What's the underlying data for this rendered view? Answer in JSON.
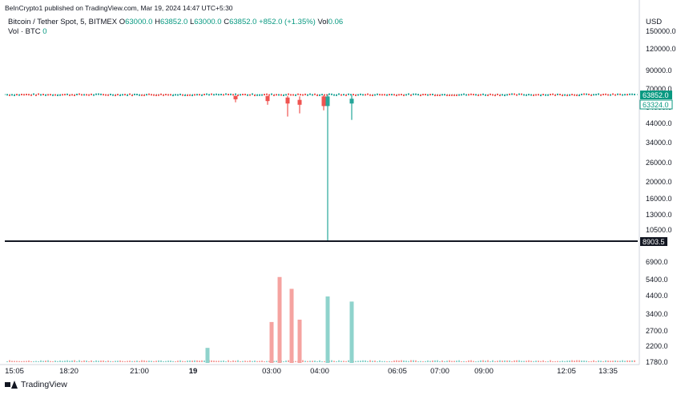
{
  "published": "BeInCrypto1 published on TradingView.com, Mar 19, 2024 14:47 UTC+5:30",
  "legend": {
    "symbol": "Bitcoin / Tether Spot, 5, BITMEX",
    "o_label": "O",
    "o": "63000.0",
    "h_label": "H",
    "h": "63852.0",
    "l_label": "L",
    "l": "63000.0",
    "c_label": "C",
    "c": "63852.0",
    "change": "+852.0 (+1.35%)",
    "vol_label": "Vol",
    "vol": "0.06",
    "vol_series": "Vol · BTC",
    "vol_series_value": "0"
  },
  "footer": {
    "brand": "TradingView"
  },
  "colors": {
    "up": "#26a69a",
    "down": "#ef5350",
    "up_vol": "#8fd3cc",
    "down_vol": "#f5a3a0",
    "axis": "#d1d4dc"
  },
  "chart_data": {
    "type": "candlestick",
    "currency": "USD",
    "price_axis_ticks": [
      "150000.0",
      "120000.0",
      "90000.0",
      "70000.0",
      "54000.0",
      "44000.0",
      "34000.0",
      "26000.0",
      "20000.0",
      "16000.0",
      "13000.0",
      "10500.0",
      "6900.0",
      "5400.0",
      "4400.0",
      "3400.0",
      "2700.0",
      "2200.0",
      "1780.0"
    ],
    "time_axis_ticks": [
      "15:05",
      "18:20",
      "21:00",
      "19",
      "03:00",
      "04:00",
      "06:05",
      "07:00",
      "09:00",
      "12:05",
      "13:35"
    ],
    "last_price": "63852.0",
    "mark_price": "63324.0",
    "horizontal_line": "8903.5",
    "price_range": [
      8903.5,
      150000
    ],
    "notable_candles": [
      {
        "time": "02:15",
        "open": 63500,
        "high": 63700,
        "low": 58000,
        "close": 60500,
        "dir": "down"
      },
      {
        "time": "02:55",
        "open": 63400,
        "high": 63600,
        "low": 56000,
        "close": 59000,
        "dir": "down"
      },
      {
        "time": "03:20",
        "open": 62000,
        "high": 63500,
        "low": 48000,
        "close": 57000,
        "dir": "down"
      },
      {
        "time": "03:35",
        "open": 60000,
        "high": 63000,
        "low": 50000,
        "close": 56000,
        "dir": "down"
      },
      {
        "time": "04:05",
        "open": 63000,
        "high": 64000,
        "low": 52000,
        "close": 55000,
        "dir": "down"
      },
      {
        "time": "04:10",
        "open": 55000,
        "high": 65000,
        "low": 8903.5,
        "close": 63000,
        "dir": "up"
      },
      {
        "time": "04:40",
        "open": 57000,
        "high": 64000,
        "low": 46000,
        "close": 61000,
        "dir": "up"
      }
    ],
    "volume_note": "Volume bars shown in lower pane; values estimated",
    "volume": [
      {
        "time": "01:40",
        "value": 2150,
        "dir": "up"
      },
      {
        "time": "03:00",
        "value": 3050,
        "dir": "down"
      },
      {
        "time": "03:10",
        "value": 5600,
        "dir": "down"
      },
      {
        "time": "03:25",
        "value": 4800,
        "dir": "down"
      },
      {
        "time": "03:35",
        "value": 3150,
        "dir": "down"
      },
      {
        "time": "04:10",
        "value": 4350,
        "dir": "up"
      },
      {
        "time": "04:40",
        "value": 4050,
        "dir": "up"
      }
    ]
  }
}
